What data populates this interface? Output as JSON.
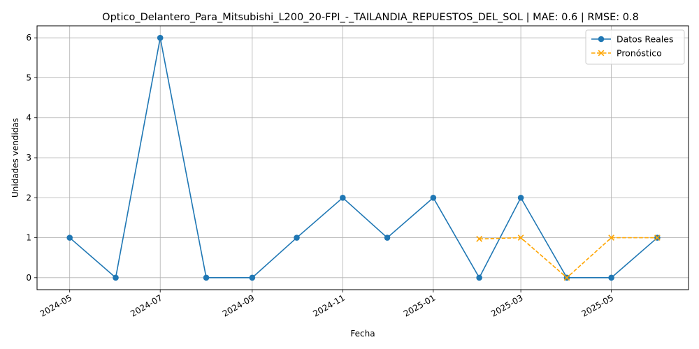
{
  "chart_data": {
    "type": "line",
    "title": "Optico_Delantero_Para_Mitsubishi_L200_20-FPI_-_TAILANDIA_REPUESTOS_DEL_SOL | MAE: 0.6 | RMSE: 0.8",
    "xlabel": "Fecha",
    "ylabel": "Unidades vendidas",
    "ylim": [
      -0.3,
      6.3
    ],
    "xlim": [
      "2024-04-09",
      "2025-06-22"
    ],
    "grid": true,
    "legend_position": "top-right",
    "x_ticks": [
      "2024-05",
      "2024-07",
      "2024-09",
      "2024-11",
      "2025-01",
      "2025-03",
      "2025-05"
    ],
    "y_ticks": [
      0,
      1,
      2,
      3,
      4,
      5,
      6
    ],
    "series": [
      {
        "name": "Datos Reales",
        "color": "#1f77b4",
        "style": "solid",
        "marker": "circle",
        "x": [
          "2024-05-01",
          "2024-06-01",
          "2024-07-01",
          "2024-08-01",
          "2024-09-01",
          "2024-10-01",
          "2024-11-01",
          "2024-12-01",
          "2025-01-01",
          "2025-02-01",
          "2025-03-01",
          "2025-04-01",
          "2025-05-01",
          "2025-06-01"
        ],
        "values": [
          1,
          0,
          6,
          0,
          0,
          1,
          2,
          1,
          2,
          0,
          2,
          0,
          0,
          1
        ]
      },
      {
        "name": "Pronóstico",
        "color": "#ffa500",
        "style": "dashed",
        "marker": "x",
        "x": [
          "2025-02-01",
          "2025-03-01",
          "2025-04-01",
          "2025-05-01",
          "2025-06-01"
        ],
        "values": [
          0.97,
          1.0,
          0.0,
          1.0,
          1.0
        ]
      }
    ]
  }
}
